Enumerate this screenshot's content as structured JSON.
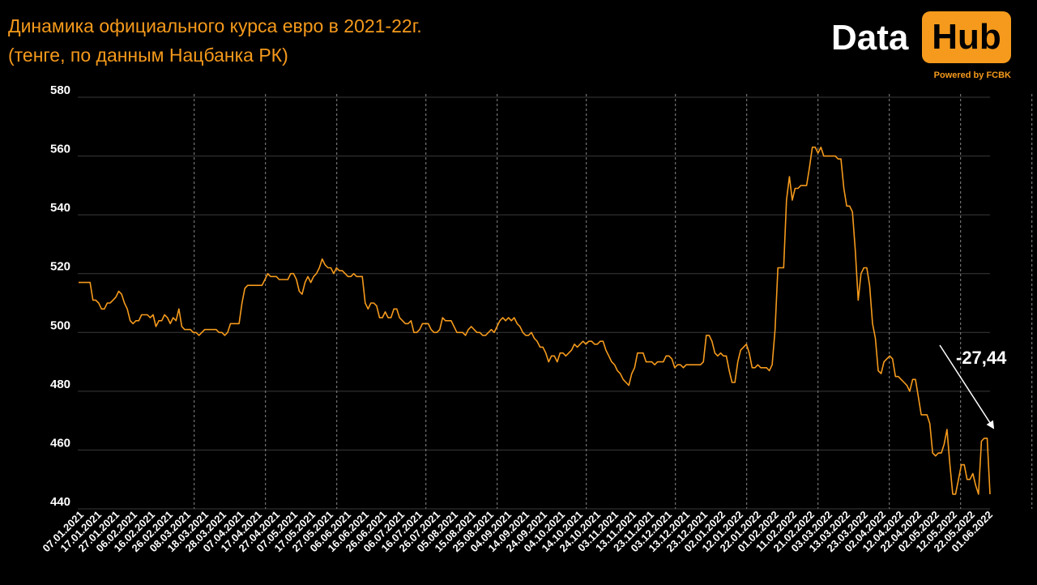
{
  "header": {
    "title_line1": "Динамика официального курса евро в 2021-22г.",
    "title_line2": "(тенге, по данным Нацбанка РК)"
  },
  "logo": {
    "data_text": "Data",
    "hub_text": "Hub",
    "powered_text": "Powered by FCBK"
  },
  "colors": {
    "background": "#000000",
    "accent": "#f59a1c",
    "line": "#f59a1c",
    "grid": "#3a3a3a",
    "text": "#ffffff"
  },
  "chart_data": {
    "type": "line",
    "title": "Динамика официального курса евро в 2021-22г.",
    "subtitle": "(тенге, по данным Нацбанка РК)",
    "xlabel": "",
    "ylabel": "",
    "ylim": [
      440,
      580
    ],
    "yticks": [
      440,
      460,
      480,
      500,
      520,
      540,
      560,
      580
    ],
    "grid": {
      "horizontal": true,
      "vertical_dashed": true
    },
    "x_tick_labels": [
      "07.01.2021",
      "17.01.2021",
      "27.01.2021",
      "06.02.2021",
      "16.02.2021",
      "26.02.2021",
      "08.03.2021",
      "18.03.2021",
      "28.03.2021",
      "07.04.2021",
      "17.04.2021",
      "27.04.2021",
      "07.05.2021",
      "17.05.2021",
      "27.05.2021",
      "06.06.2021",
      "16.06.2021",
      "26.06.2021",
      "06.07.2021",
      "16.07.2021",
      "26.07.2021",
      "05.08.2021",
      "15.08.2021",
      "25.08.2021",
      "04.09.2021",
      "14.09.2021",
      "24.09.2021",
      "04.10.2021",
      "14.10.2021",
      "24.10.2021",
      "03.11.2021",
      "13.11.2021",
      "23.11.2021",
      "03.12.2021",
      "13.12.2021",
      "23.12.2021",
      "02.01.2022",
      "12.01.2022",
      "22.01.2022",
      "01.02.2022",
      "11.02.2022",
      "21.02.2022",
      "03.03.2022",
      "13.03.2022",
      "23.03.2022",
      "02.04.2022",
      "12.04.2022",
      "22.04.2022",
      "02.05.2022",
      "12.05.2022",
      "22.05.2022",
      "01.06.2022"
    ],
    "dashed_gridline_after_tick_index": [
      6,
      10,
      14,
      19,
      23,
      28,
      33,
      37,
      41,
      45,
      49,
      53,
      57,
      61
    ],
    "series": [
      {
        "values": [
          517,
          517,
          517,
          517,
          517,
          511,
          511,
          510,
          508,
          508,
          510,
          510,
          511,
          512,
          514,
          513,
          510,
          508,
          504,
          503,
          504,
          504,
          506,
          506,
          506,
          505,
          506,
          502,
          504,
          504,
          506,
          505,
          503,
          505,
          504,
          508,
          502,
          501,
          501,
          501,
          500,
          500,
          499,
          500,
          501,
          501,
          501,
          501,
          501,
          500,
          500,
          499,
          500,
          503,
          503,
          503,
          503,
          510,
          515,
          516,
          516,
          516,
          516,
          516,
          516,
          518,
          520,
          519,
          519,
          519,
          518,
          518,
          518,
          518,
          520,
          520,
          518,
          514,
          513,
          517,
          519,
          517,
          519,
          520,
          522,
          525,
          523,
          522,
          522,
          520,
          522,
          521,
          521,
          520,
          519,
          519,
          520,
          519,
          519,
          519,
          510,
          508,
          510,
          510,
          509,
          505,
          505,
          507,
          505,
          505,
          508,
          508,
          505,
          504,
          503,
          503,
          504,
          500,
          500,
          501,
          503,
          503,
          503,
          501,
          500,
          500,
          501,
          505,
          504,
          504,
          504,
          502,
          500,
          500,
          500,
          499,
          501,
          502,
          501,
          500,
          500,
          499,
          499,
          500,
          501,
          500,
          502,
          504,
          505,
          504,
          505,
          504,
          505,
          503,
          502,
          500,
          499,
          499,
          500,
          498,
          497,
          495,
          495,
          493,
          490,
          492,
          492,
          490,
          493,
          493,
          492,
          493,
          494,
          496,
          495,
          496,
          497,
          496,
          497,
          497,
          496,
          496,
          497,
          497,
          494,
          492,
          490,
          489,
          487,
          486,
          484,
          483,
          482,
          486,
          488,
          493,
          493,
          493,
          490,
          490,
          490,
          489,
          490,
          490,
          490,
          492,
          492,
          491,
          488,
          489,
          489,
          488,
          489,
          489,
          489,
          489,
          489,
          489,
          490,
          499,
          499,
          497,
          493,
          492,
          493,
          492,
          492,
          487,
          483,
          483,
          490,
          494,
          495,
          496,
          493,
          488,
          488,
          489,
          488,
          488,
          488,
          487,
          489,
          501,
          522,
          522,
          522,
          545,
          553,
          545,
          549,
          549,
          550,
          550,
          550,
          556,
          563,
          563,
          561,
          563,
          560,
          560,
          560,
          560,
          560,
          559,
          559,
          549,
          543,
          543,
          541,
          528,
          511,
          520,
          522,
          522,
          516,
          503,
          498,
          487,
          486,
          490,
          491,
          492,
          491,
          485,
          485,
          484,
          483,
          482,
          480,
          484,
          484,
          478,
          472,
          472,
          472,
          469,
          459,
          458,
          459,
          459,
          462,
          467,
          455,
          445,
          445,
          450,
          455,
          455,
          450,
          450,
          452,
          448,
          445,
          463,
          464,
          464,
          445
        ]
      }
    ],
    "annotations": [
      {
        "text": "-27,44",
        "arrow": "down-right",
        "position": "right, above the final drop"
      }
    ]
  }
}
